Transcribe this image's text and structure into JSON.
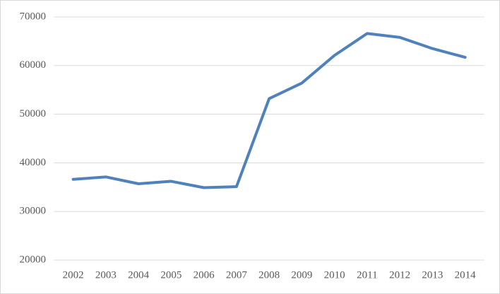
{
  "chart_data": {
    "type": "line",
    "categories": [
      "2002",
      "2003",
      "2004",
      "2005",
      "2006",
      "2007",
      "2008",
      "2009",
      "2010",
      "2011",
      "2012",
      "2013",
      "2014"
    ],
    "values": [
      36600,
      37100,
      35700,
      36200,
      34900,
      35100,
      53200,
      56400,
      62100,
      66600,
      65800,
      63500,
      61700
    ],
    "color": "#4f81bd",
    "ylim": [
      20000,
      70000
    ],
    "yticks": [
      20000,
      30000,
      40000,
      50000,
      60000,
      70000
    ],
    "grid": true
  }
}
